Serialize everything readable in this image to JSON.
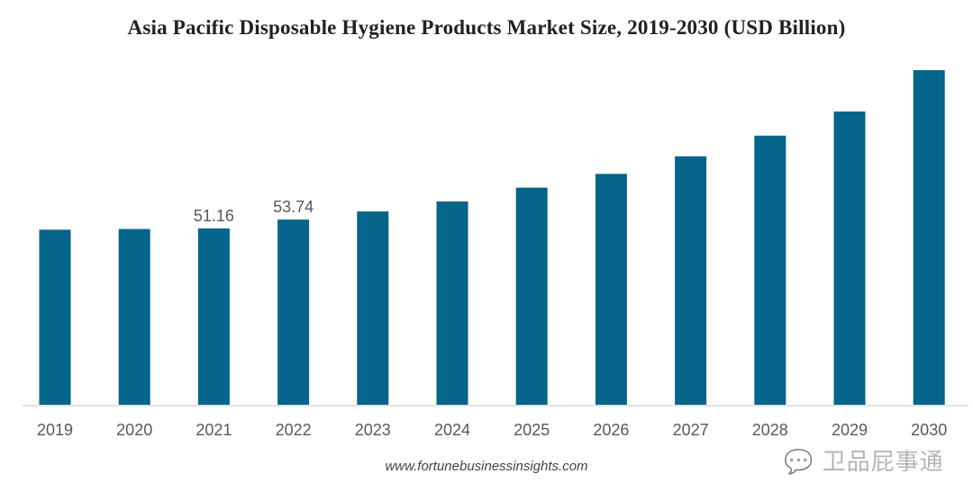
{
  "chart_data": {
    "type": "bar",
    "title": "Asia Pacific Disposable Hygiene Products Market Size, 2019-2030 (USD Billion)",
    "xlabel": "",
    "ylabel": "",
    "categories": [
      "2019",
      "2020",
      "2021",
      "2022",
      "2023",
      "2024",
      "2025",
      "2026",
      "2027",
      "2028",
      "2029",
      "2030"
    ],
    "values": [
      50.8,
      51.0,
      51.16,
      53.74,
      56.1,
      59.0,
      63.0,
      67.0,
      72.1,
      78.1,
      85.1,
      97.1
    ],
    "data_labels": {
      "2021": "51.16",
      "2022": "53.74"
    },
    "ylim": [
      0,
      100
    ],
    "y_axis_visible": false,
    "grid": false,
    "legend": "none",
    "bar_color": "#05658A",
    "label_color": "#595959"
  },
  "source": "www.fortunebusinessinsights.com",
  "watermark": "卫品屁事通"
}
